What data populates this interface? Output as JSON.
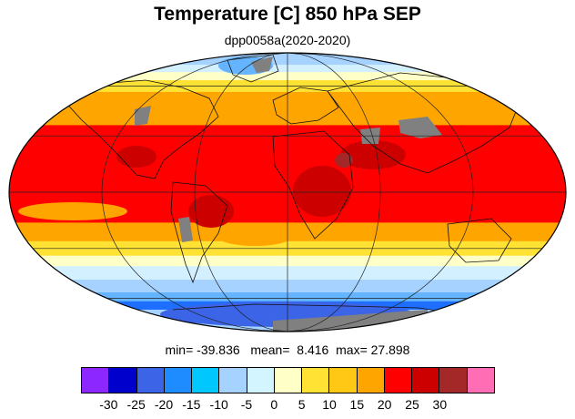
{
  "title": "Temperature [C] 850 hPa SEP",
  "subtitle": "dpp0058a(2020-2020)",
  "stats": {
    "min_label": "min=",
    "min_value": "-39.836",
    "mean_label": "mean=",
    "mean_value": "8.416",
    "max_label": "max=",
    "max_value": "27.898"
  },
  "map": {
    "projection": "mollweide",
    "missing_color": "#808080",
    "zones": [
      {
        "lat_max": 90,
        "lat_min": 76,
        "color": "#a6d2ff"
      },
      {
        "lat_max": 76,
        "lat_min": 70,
        "color": "#d2f0ff"
      },
      {
        "lat_max": 70,
        "lat_min": 64,
        "color": "#ffffc8"
      },
      {
        "lat_max": 64,
        "lat_min": 56,
        "color": "#ffe233"
      },
      {
        "lat_max": 56,
        "lat_min": 46,
        "color": "#ffa500"
      },
      {
        "lat_max": 46,
        "lat_min": 36,
        "color": "#ffa500"
      },
      {
        "lat_max": 36,
        "lat_min": -16,
        "color": "#ff0000"
      },
      {
        "lat_max": -16,
        "lat_min": -26,
        "color": "#ffa500"
      },
      {
        "lat_max": -26,
        "lat_min": -34,
        "color": "#ffe233"
      },
      {
        "lat_max": -34,
        "lat_min": -40,
        "color": "#ffffc8"
      },
      {
        "lat_max": -40,
        "lat_min": -48,
        "color": "#d2f0ff"
      },
      {
        "lat_max": -48,
        "lat_min": -56,
        "color": "#a6d2ff"
      },
      {
        "lat_max": -56,
        "lat_min": -62,
        "color": "#64b4ff"
      },
      {
        "lat_max": -62,
        "lat_min": -68,
        "color": "#1e6eff"
      },
      {
        "lat_max": -68,
        "lat_min": -90,
        "color": "#a6d2ff"
      }
    ]
  },
  "colorbar": {
    "colors": [
      "#8c28ff",
      "#0000cd",
      "#3c64e6",
      "#1e8cff",
      "#00c8ff",
      "#a6d2ff",
      "#d2f5ff",
      "#ffffc8",
      "#ffe233",
      "#ffc814",
      "#ffa500",
      "#ff0000",
      "#cd0000",
      "#a52828",
      "#ff6eb4"
    ],
    "ticks": [
      "-30",
      "-25",
      "-20",
      "-15",
      "-10",
      "-5",
      "0",
      "5",
      "10",
      "15",
      "20",
      "25",
      "30"
    ]
  }
}
